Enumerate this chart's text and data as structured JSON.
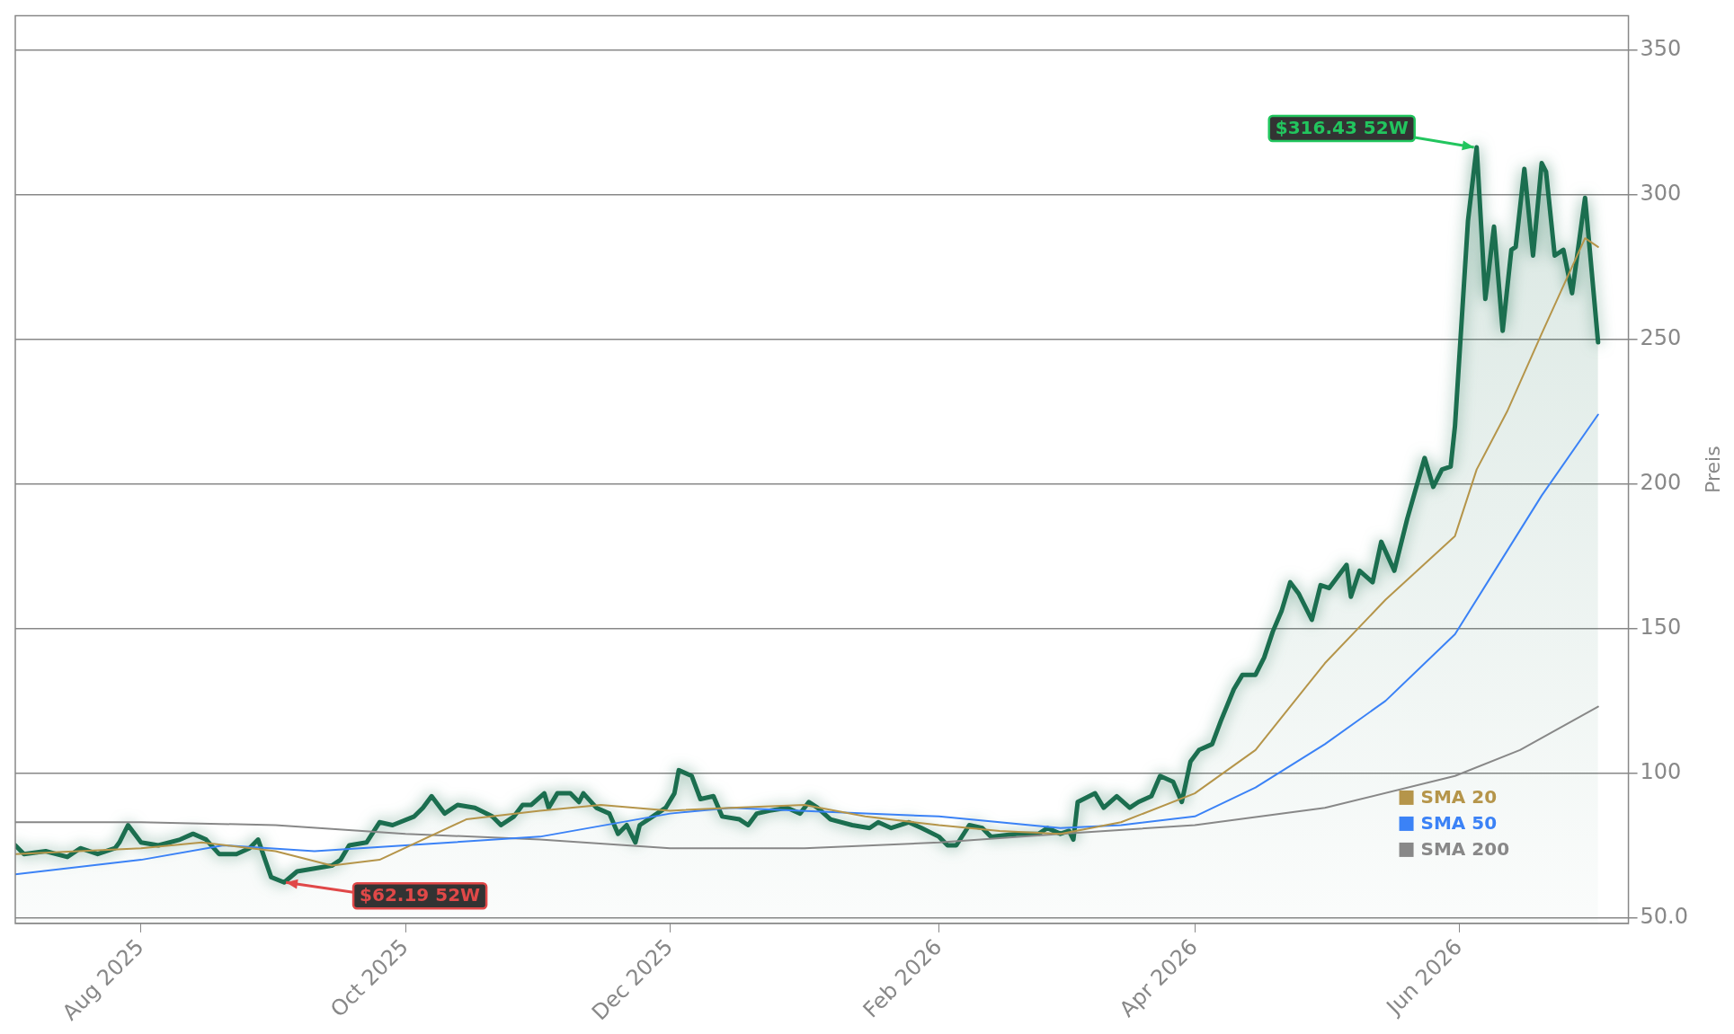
{
  "chart_data": {
    "type": "line",
    "ylabel": "Preis",
    "xlim": [
      "2025-07-03",
      "2026-07-10"
    ],
    "xticks": [
      {
        "value": "2025-08-01",
        "label": "Aug 2025"
      },
      {
        "value": "2025-10-01",
        "label": "Oct 2025"
      },
      {
        "value": "2025-12-01",
        "label": "Dec 2025"
      },
      {
        "value": "2026-02-01",
        "label": "Feb 2026"
      },
      {
        "value": "2026-04-01",
        "label": "Apr 2026"
      },
      {
        "value": "2026-06-01",
        "label": "Jun 2026"
      }
    ],
    "ylim": [
      48,
      362
    ],
    "yticks": [
      {
        "value": 50,
        "label": "50.0"
      },
      100,
      150,
      200,
      250,
      300,
      350
    ],
    "grid": "y",
    "legend": "bottom right",
    "marker": "none",
    "series": [
      {
        "type": "area",
        "color": "#1b6e4f",
        "x": [
          "2025-07-03",
          "2025-07-05",
          "2025-07-10",
          "2025-07-15",
          "2025-07-18",
          "2025-07-22",
          "2025-07-26",
          "2025-07-27",
          "2025-07-29",
          "2025-08-01",
          "2025-08-05",
          "2025-08-10",
          "2025-08-13",
          "2025-08-16",
          "2025-08-19",
          "2025-08-23",
          "2025-08-26",
          "2025-08-28",
          "2025-08-31",
          "2025-09-03",
          "2025-09-06",
          "2025-09-10",
          "2025-09-14",
          "2025-09-16",
          "2025-09-18",
          "2025-09-22",
          "2025-09-25",
          "2025-09-28",
          "2025-10-03",
          "2025-10-05",
          "2025-10-07",
          "2025-10-10",
          "2025-10-13",
          "2025-10-17",
          "2025-10-21",
          "2025-10-23",
          "2025-10-26",
          "2025-10-28",
          "2025-10-30",
          "2025-11-02",
          "2025-11-03",
          "2025-11-05",
          "2025-11-08",
          "2025-11-10",
          "2025-11-11",
          "2025-11-14",
          "2025-11-17",
          "2025-11-19",
          "2025-11-21",
          "2025-11-23",
          "2025-11-24",
          "2025-11-27",
          "2025-11-30",
          "2025-12-02",
          "2025-12-03",
          "2025-12-06",
          "2025-12-08",
          "2025-12-11",
          "2025-12-13",
          "2025-12-17",
          "2025-12-19",
          "2025-12-21",
          "2025-12-24",
          "2025-12-28",
          "2025-12-31",
          "2026-01-02",
          "2026-01-04",
          "2026-01-07",
          "2026-01-12",
          "2026-01-16",
          "2026-01-18",
          "2026-01-21",
          "2026-01-25",
          "2026-01-28",
          "2026-02-01",
          "2026-02-03",
          "2026-02-05",
          "2026-02-08",
          "2026-02-11",
          "2026-02-13",
          "2026-02-19",
          "2026-02-24",
          "2026-02-26",
          "2026-03-01",
          "2026-03-03",
          "2026-03-04",
          "2026-03-05",
          "2026-03-09",
          "2026-03-11",
          "2026-03-14",
          "2026-03-17",
          "2026-03-19",
          "2026-03-22",
          "2026-03-24",
          "2026-03-27",
          "2026-03-29",
          "2026-03-31",
          "2026-04-02",
          "2026-04-05",
          "2026-04-07",
          "2026-04-10",
          "2026-04-12",
          "2026-04-15",
          "2026-04-17",
          "2026-04-19",
          "2026-04-21",
          "2026-04-23",
          "2026-04-25",
          "2026-04-28",
          "2026-04-30",
          "2026-05-02",
          "2026-05-06",
          "2026-05-07",
          "2026-05-09",
          "2026-05-12",
          "2026-05-14",
          "2026-05-17",
          "2026-05-20",
          "2026-05-24",
          "2026-05-26",
          "2026-05-28",
          "2026-05-30",
          "2026-05-31",
          "2026-06-03",
          "2026-06-05",
          "2026-06-07",
          "2026-06-09",
          "2026-06-11",
          "2026-06-13",
          "2026-06-14",
          "2026-06-16",
          "2026-06-18",
          "2026-06-20",
          "2026-06-21",
          "2026-06-23",
          "2026-06-25",
          "2026-06-27",
          "2026-06-30",
          "2026-07-03"
        ],
        "values": [
          75,
          72,
          73,
          71,
          74,
          72,
          74,
          76,
          82,
          76,
          75,
          77,
          79,
          77,
          72,
          72,
          74,
          77,
          64,
          62.19,
          66,
          67,
          68,
          70,
          75,
          76,
          83,
          82,
          85,
          88,
          92,
          86,
          89,
          88,
          85,
          82,
          85,
          89,
          89,
          93,
          88,
          93,
          93,
          90,
          93,
          88,
          86,
          79,
          82,
          76,
          82,
          85,
          88,
          93,
          101,
          99,
          91,
          92,
          85,
          84,
          82,
          86,
          87,
          88,
          86,
          90,
          88,
          84,
          82,
          81,
          83,
          81,
          83,
          81,
          78,
          75,
          75,
          82,
          81,
          78,
          79,
          79,
          81,
          79,
          80,
          77,
          90,
          93,
          88,
          92,
          88,
          90,
          92,
          99,
          97,
          90,
          104,
          108,
          110,
          118,
          129,
          134,
          134,
          140,
          149,
          156,
          166,
          162,
          153,
          165,
          164,
          172,
          161,
          170,
          166,
          180,
          170,
          188,
          209,
          199,
          205,
          206,
          220,
          291,
          316.43,
          264,
          289,
          253,
          281,
          282,
          309,
          279,
          311,
          308,
          279,
          281,
          266,
          299,
          249
        ]
      },
      {
        "name": "SMA 20",
        "color": "#b5954a",
        "x": [
          "2025-07-03",
          "2025-08-01",
          "2025-08-15",
          "2025-09-01",
          "2025-09-14",
          "2025-09-25",
          "2025-10-15",
          "2025-11-01",
          "2025-11-15",
          "2025-12-01",
          "2025-12-15",
          "2026-01-01",
          "2026-01-15",
          "2026-02-01",
          "2026-02-15",
          "2026-03-01",
          "2026-03-15",
          "2026-04-01",
          "2026-04-15",
          "2026-05-01",
          "2026-05-15",
          "2026-05-31",
          "2026-06-05",
          "2026-06-12",
          "2026-06-20",
          "2026-06-30",
          "2026-07-03"
        ],
        "values": [
          72,
          74,
          76,
          73,
          68,
          70,
          84,
          87,
          89,
          87,
          88,
          89,
          85,
          82,
          80,
          79,
          83,
          93,
          108,
          138,
          160,
          182,
          205,
          225,
          252,
          285,
          282
        ]
      },
      {
        "name": "SMA 50",
        "color": "#3b82f6",
        "x": [
          "2025-07-03",
          "2025-08-01",
          "2025-08-20",
          "2025-09-10",
          "2025-10-01",
          "2025-11-01",
          "2025-12-01",
          "2025-12-15",
          "2026-01-15",
          "2026-02-01",
          "2026-03-01",
          "2026-03-15",
          "2026-04-01",
          "2026-04-15",
          "2026-05-01",
          "2026-05-15",
          "2026-05-31",
          "2026-06-10",
          "2026-06-20",
          "2026-07-03"
        ],
        "values": [
          65,
          70,
          75,
          73,
          75,
          78,
          86,
          88,
          86,
          85,
          81,
          82,
          85,
          95,
          110,
          125,
          148,
          172,
          196,
          224
        ]
      },
      {
        "name": "SMA 200",
        "color": "#888888",
        "x": [
          "2025-07-03",
          "2025-08-01",
          "2025-09-01",
          "2025-10-01",
          "2025-11-01",
          "2025-12-01",
          "2026-01-01",
          "2026-02-01",
          "2026-03-01",
          "2026-04-01",
          "2026-05-01",
          "2026-05-31",
          "2026-06-15",
          "2026-07-03"
        ],
        "values": [
          83,
          83,
          82,
          79,
          77,
          74,
          74,
          76,
          79,
          82,
          88,
          99,
          108,
          123
        ]
      }
    ],
    "annotations": [
      {
        "text": "$316.43 52W",
        "x": "2026-06-05",
        "y": 316.43
      },
      {
        "text": "$62.19 52W",
        "x": "2025-09-03",
        "y": 62.19
      }
    ]
  }
}
